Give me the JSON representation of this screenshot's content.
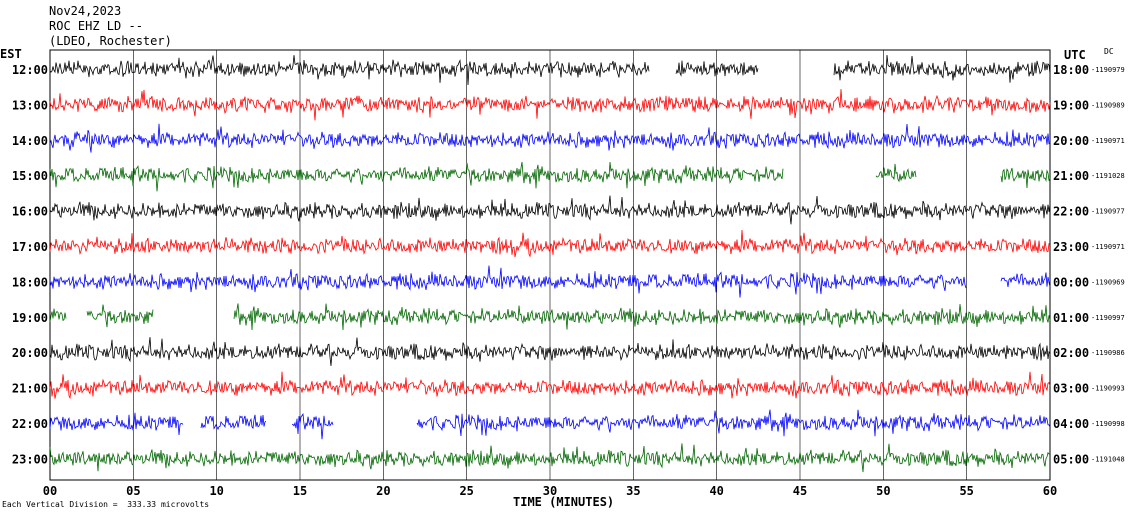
{
  "header": {
    "date": "Nov24,2023",
    "station": "ROC EHZ LD --",
    "network": "(LDEO, Rochester)"
  },
  "tz_left": "EST",
  "tz_right": "UTC",
  "dc_label": "DC",
  "scale_note": "Each Vertical Division =  333.33 microvolts",
  "chart_data": {
    "type": "line",
    "title": "",
    "xlabel": "TIME (MINUTES)",
    "ylabel": "",
    "xlim": [
      0,
      60
    ],
    "x_ticks": [
      "00",
      "05",
      "10",
      "15",
      "20",
      "25",
      "30",
      "35",
      "40",
      "45",
      "50",
      "55",
      "60"
    ],
    "grid": "vertical lines every 5 minutes",
    "rows": [
      {
        "est": "12:00",
        "utc": "18:00",
        "dc": "-1190979",
        "color": "#000000",
        "gaps": [
          [
            36,
            37.5
          ],
          [
            42.5,
            47
          ]
        ]
      },
      {
        "est": "13:00",
        "utc": "19:00",
        "dc": "-1190989",
        "color": "#ff0000",
        "gaps": []
      },
      {
        "est": "14:00",
        "utc": "20:00",
        "dc": "-1190971",
        "color": "#0000ff",
        "gaps": []
      },
      {
        "est": "15:00",
        "utc": "21:00",
        "dc": "-1191028",
        "color": "#006600",
        "gaps": [
          [
            44,
            49.5
          ],
          [
            52,
            57
          ]
        ]
      },
      {
        "est": "16:00",
        "utc": "22:00",
        "dc": "-1190977",
        "color": "#000000",
        "gaps": []
      },
      {
        "est": "17:00",
        "utc": "23:00",
        "dc": "-1190971",
        "color": "#ff0000",
        "gaps": []
      },
      {
        "est": "18:00",
        "utc": "00:00",
        "dc": "-1190969",
        "color": "#0000ff",
        "gaps": [
          [
            55,
            57
          ]
        ]
      },
      {
        "est": "19:00",
        "utc": "01:00",
        "dc": "-1190997",
        "color": "#006600",
        "gaps": [
          [
            1,
            2.2
          ],
          [
            6.2,
            11
          ]
        ]
      },
      {
        "est": "20:00",
        "utc": "02:00",
        "dc": "-1190986",
        "color": "#000000",
        "gaps": []
      },
      {
        "est": "21:00",
        "utc": "03:00",
        "dc": "-1190993",
        "color": "#ff0000",
        "gaps": []
      },
      {
        "est": "22:00",
        "utc": "04:00",
        "dc": "-1190998",
        "color": "#0000ff",
        "gaps": [
          [
            8,
            9
          ],
          [
            13,
            14.5
          ],
          [
            17,
            22
          ]
        ]
      },
      {
        "est": "23:00",
        "utc": "05:00",
        "dc": "-1191048",
        "color": "#006600",
        "gaps": []
      }
    ]
  }
}
